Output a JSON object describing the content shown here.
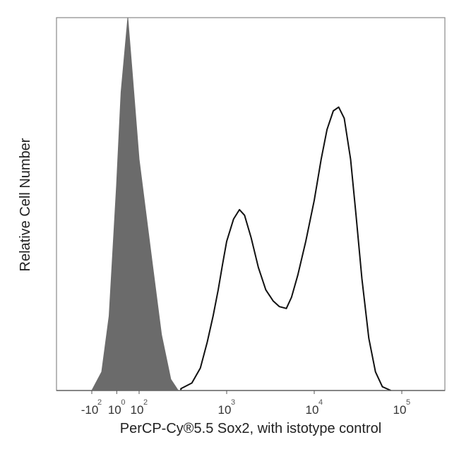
{
  "chart_data": {
    "type": "area",
    "title": "",
    "xlabel": "PerCP-Cy®5.5 Sox2, with istotype control",
    "ylabel": "Relative Cell Number",
    "x_scale": "biexponential",
    "xlim": [
      -200,
      300000
    ],
    "ylim": [
      0,
      100
    ],
    "grid": false,
    "x_ticks": [
      {
        "value": -100,
        "base": "-10",
        "exp": "2"
      },
      {
        "value": 1,
        "base": "10",
        "exp": "0"
      },
      {
        "value": 100,
        "base": "10",
        "exp": "2"
      },
      {
        "value": 1000,
        "base": "10",
        "exp": "3"
      },
      {
        "value": 10000,
        "base": "10",
        "exp": "4"
      },
      {
        "value": 100000,
        "base": "10",
        "exp": "5"
      }
    ],
    "series": [
      {
        "style": "filled",
        "color": "#6b6b6b",
        "x": [
          -100,
          -60,
          -30,
          0,
          20,
          50,
          70,
          100,
          140,
          180,
          230,
          280
        ],
        "y": [
          0,
          5,
          20,
          55,
          80,
          100,
          85,
          62,
          35,
          15,
          3,
          0
        ]
      },
      {
        "style": "outline",
        "color": "#111111",
        "x": [
          300,
          400,
          500,
          600,
          700,
          800,
          900,
          1000,
          1200,
          1400,
          1600,
          1900,
          2300,
          2800,
          3400,
          4000,
          4800,
          5500,
          6500,
          8000,
          10000,
          12000,
          14000,
          16500,
          19000,
          22000,
          26000,
          30000,
          35000,
          42000,
          50000,
          60000,
          75000
        ],
        "y": [
          0.5,
          2,
          6,
          13,
          20,
          27,
          34,
          40,
          46,
          48.5,
          47,
          41,
          33,
          27,
          24,
          22.5,
          22,
          25,
          31,
          40,
          51,
          62,
          70,
          75,
          76,
          73,
          62,
          47,
          30,
          14,
          5,
          1,
          0
        ]
      }
    ]
  }
}
